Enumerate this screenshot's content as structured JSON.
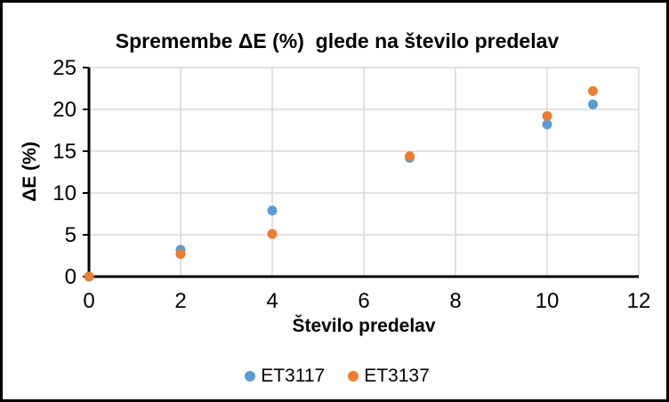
{
  "chart_data": {
    "type": "scatter",
    "title": "Spremembe ΔE (%)  glede na število predelav",
    "xlabel": "Število predelav",
    "ylabel": "ΔE (%)",
    "xlim": [
      0,
      12
    ],
    "ylim": [
      0,
      25
    ],
    "x_ticks": [
      0,
      2,
      4,
      6,
      8,
      10,
      12
    ],
    "y_ticks": [
      0,
      5,
      10,
      15,
      20,
      25
    ],
    "grid": true,
    "grid_color": "#D9D9D9",
    "axis_color": "#000000",
    "legend_position": "bottom-center",
    "series": [
      {
        "name": "ET3117",
        "color": "#5B9BD5",
        "points": [
          [
            0,
            0
          ],
          [
            2,
            3.2
          ],
          [
            4,
            7.9
          ],
          [
            7,
            14.2
          ],
          [
            10,
            18.2
          ],
          [
            11,
            20.6
          ]
        ]
      },
      {
        "name": "ET3137",
        "color": "#ED7D31",
        "points": [
          [
            0,
            0
          ],
          [
            2,
            2.7
          ],
          [
            4,
            5.1
          ],
          [
            7,
            14.4
          ],
          [
            10,
            19.2
          ],
          [
            11,
            22.2
          ]
        ]
      }
    ]
  }
}
